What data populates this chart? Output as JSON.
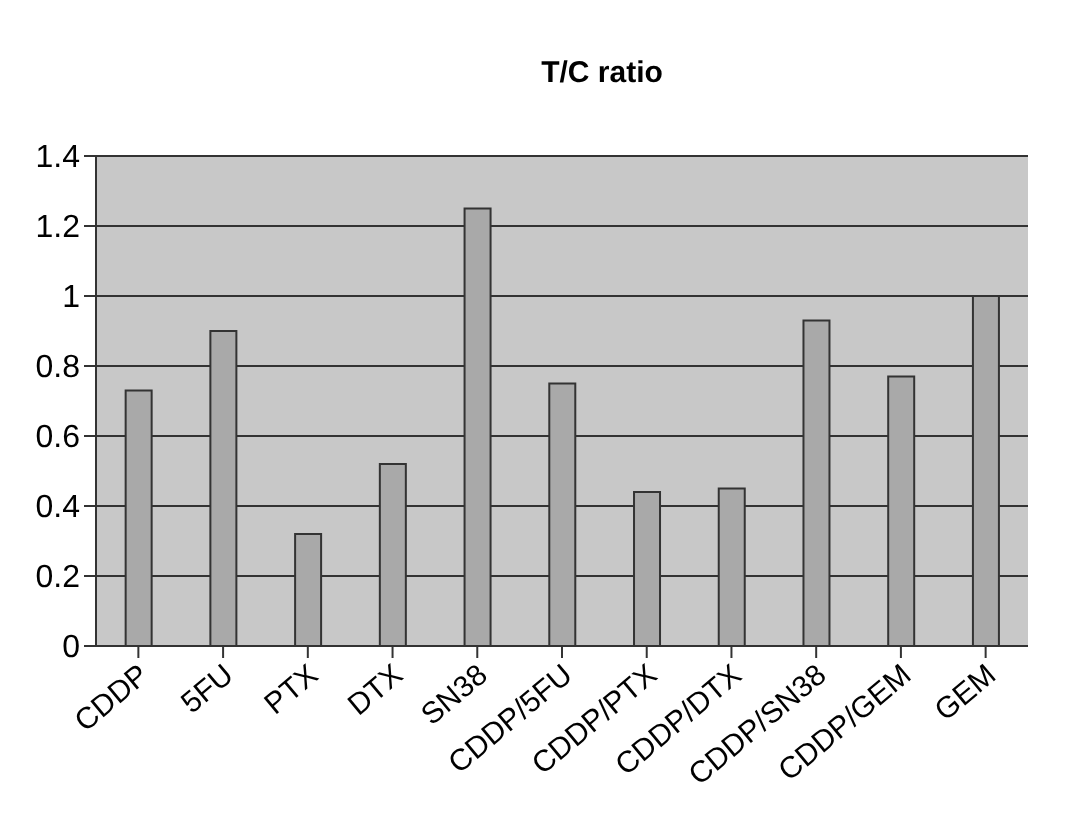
{
  "chart_data": {
    "type": "bar",
    "title": "T/C ratio",
    "categories": [
      "CDDP",
      "5FU",
      "PTX",
      "DTX",
      "SN38",
      "CDDP/5FU",
      "CDDP/PTX",
      "CDDP/DTX",
      "CDDP/SN38",
      "CDDP/GEM",
      "GEM"
    ],
    "values": [
      0.73,
      0.9,
      0.32,
      0.52,
      1.25,
      0.75,
      0.44,
      0.45,
      0.93,
      0.77,
      1.0
    ],
    "color": "#a9a9a9",
    "ylim": [
      0,
      1.4
    ],
    "yticks": [
      0,
      0.2,
      0.4,
      0.6,
      0.8,
      1,
      1.2,
      1.4
    ],
    "grid": "y"
  }
}
